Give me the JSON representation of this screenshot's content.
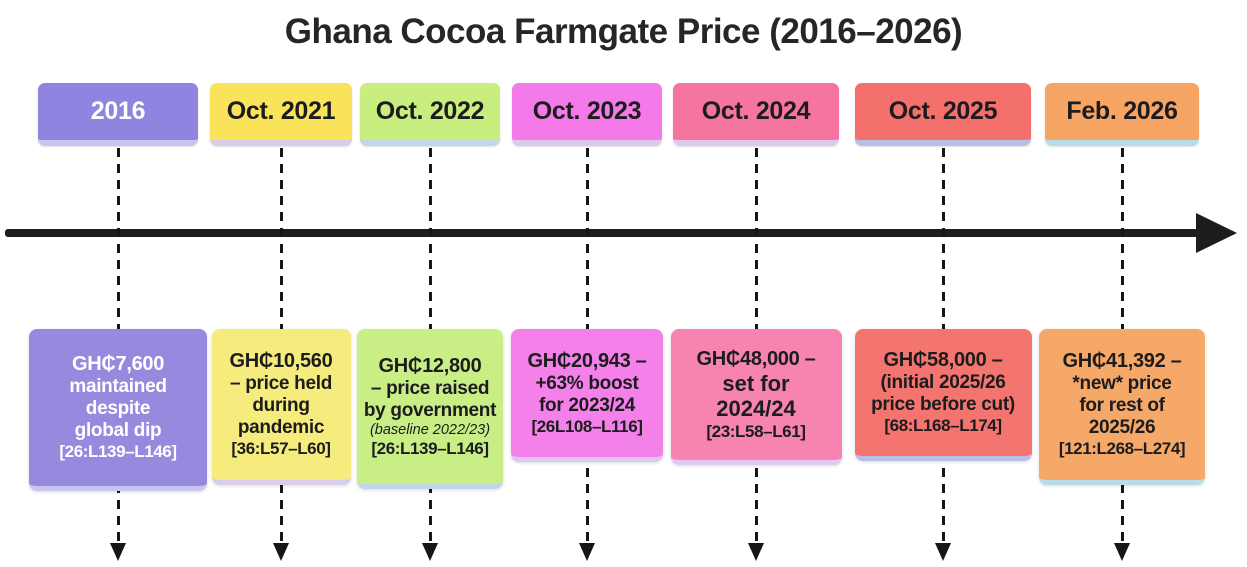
{
  "title": "Ghana Cocoa Farmgate Price (2016–2026)",
  "colors": {
    "background": "#ffffff",
    "axis": "#1d1d1d",
    "title_text": "#262626",
    "dark_text": "#1c1c1e",
    "light_text": "#ffffff"
  },
  "timeline": {
    "items": [
      {
        "date": "2016",
        "price": "GH₵7,600",
        "lines": [
          "maintained",
          "despite",
          "global dip"
        ],
        "citation": "[26:L139–L146]",
        "colors": {
          "date_bg": "#8f84e0",
          "date_text": "#ffffff",
          "card_bg": "#968ade",
          "card_text": "#ffffff",
          "edge": "#c9c5f1"
        }
      },
      {
        "date": "Oct. 2021",
        "price": "GH₵10,560",
        "lines": [
          "– price held",
          "during",
          "pandemic"
        ],
        "citation": "[36:L57–L60]",
        "colors": {
          "date_bg": "#f8e35b",
          "date_text": "#1c1c1e",
          "card_bg": "#f5ec7d",
          "card_text": "#1c1c1e",
          "edge": "#d9cdec"
        }
      },
      {
        "date": "Oct. 2022",
        "price": "GH₵12,800",
        "lines": [
          "– price raised",
          "by government"
        ],
        "note": "(baseline 2022/23)",
        "citation": "[26:L139–L146]",
        "colors": {
          "date_bg": "#c7ee7e",
          "date_text": "#1c1c1e",
          "card_bg": "#caee86",
          "card_text": "#1c1c1e",
          "edge": "#c0d7ea"
        }
      },
      {
        "date": "Oct. 2023",
        "price": "GH₵20,943 –",
        "lines": [
          "+63% boost",
          "for 2023/24"
        ],
        "citation": "[26L108–L116]",
        "colors": {
          "date_bg": "#f47ae9",
          "date_text": "#1c1c1e",
          "card_bg": "#f480ea",
          "card_text": "#1c1c1e",
          "edge": "#dcc7ee"
        }
      },
      {
        "date": "Oct. 2024",
        "price": "GH₵48,000 –",
        "lines": [
          "set for",
          "2024/24"
        ],
        "emphasis": true,
        "citation": "[23:L58–L61]",
        "colors": {
          "date_bg": "#f6759f",
          "date_text": "#1c1c1e",
          "card_bg": "#f783b0",
          "card_text": "#1c1c1e",
          "edge": "#dfc9ee"
        }
      },
      {
        "date": "Oct. 2025",
        "price": "GH₵58,000 –",
        "lines": [
          "(initial 2025/26",
          "price before cut)"
        ],
        "citation": "[68:L168–L174]",
        "colors": {
          "date_bg": "#f4706d",
          "date_text": "#1c1c1e",
          "card_bg": "#f4746f",
          "card_text": "#1c1c1e",
          "edge": "#b9c0e8"
        }
      },
      {
        "date": "Feb. 2026",
        "price": "GH₵41,392 –",
        "lines": [
          "*new* price",
          "for rest of",
          "2025/26"
        ],
        "citation": "[121:L268–L274]",
        "colors": {
          "date_bg": "#f7a565",
          "date_text": "#1c1c1e",
          "card_bg": "#f6a868",
          "card_text": "#1c1c1e",
          "edge": "#b8dcea"
        }
      }
    ]
  }
}
